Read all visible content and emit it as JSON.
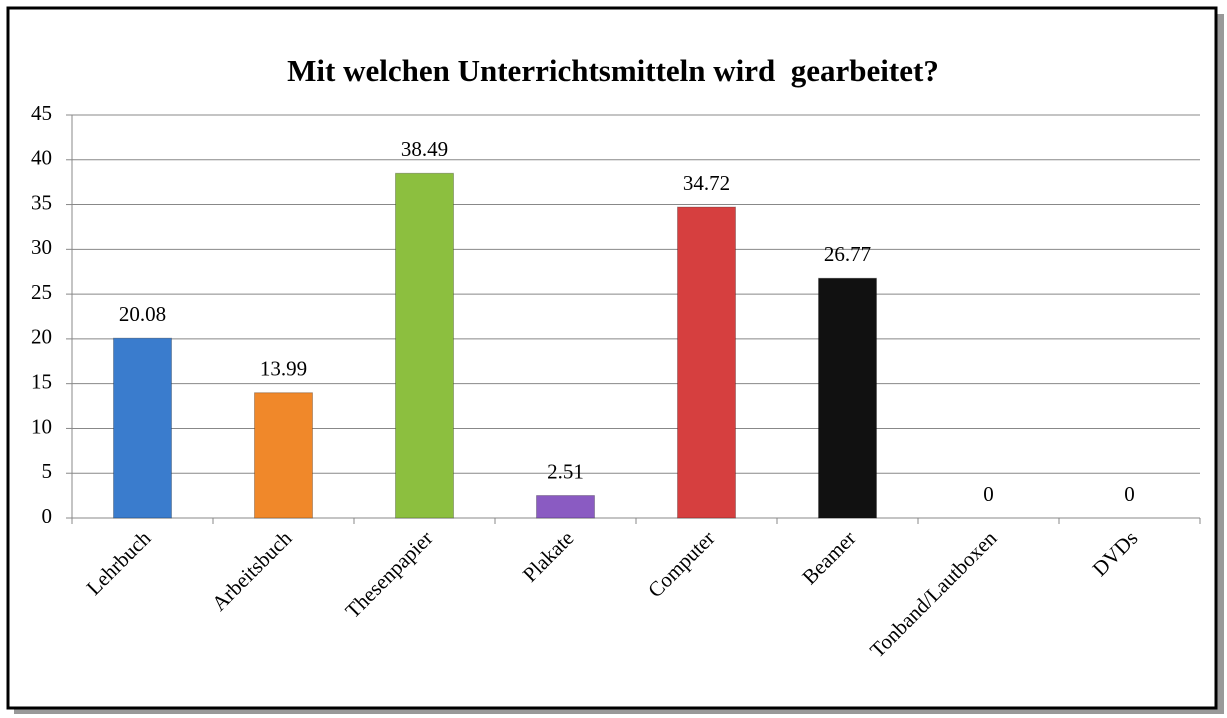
{
  "chart_data": {
    "type": "bar",
    "title": "Mit welchen Unterrichtsmitteln wird  gearbeitet?",
    "categories": [
      "Lehrbuch",
      "Arbeitsbuch",
      "Thesenpapier",
      "Plakate",
      "Computer",
      "Beamer",
      "Tonband/Lautboxen",
      "DVDs"
    ],
    "values": [
      20.08,
      13.99,
      38.49,
      2.51,
      34.72,
      26.77,
      0,
      0
    ],
    "colors": [
      "#3a7ccd",
      "#f0882a",
      "#8cbf3f",
      "#8a5bc2",
      "#d63f3f",
      "#111111",
      "#3a7ccd",
      "#f0882a"
    ],
    "ylim": [
      0,
      45
    ],
    "yticks": [
      0,
      5,
      10,
      15,
      20,
      25,
      30,
      35,
      40,
      45
    ],
    "grid": true
  }
}
